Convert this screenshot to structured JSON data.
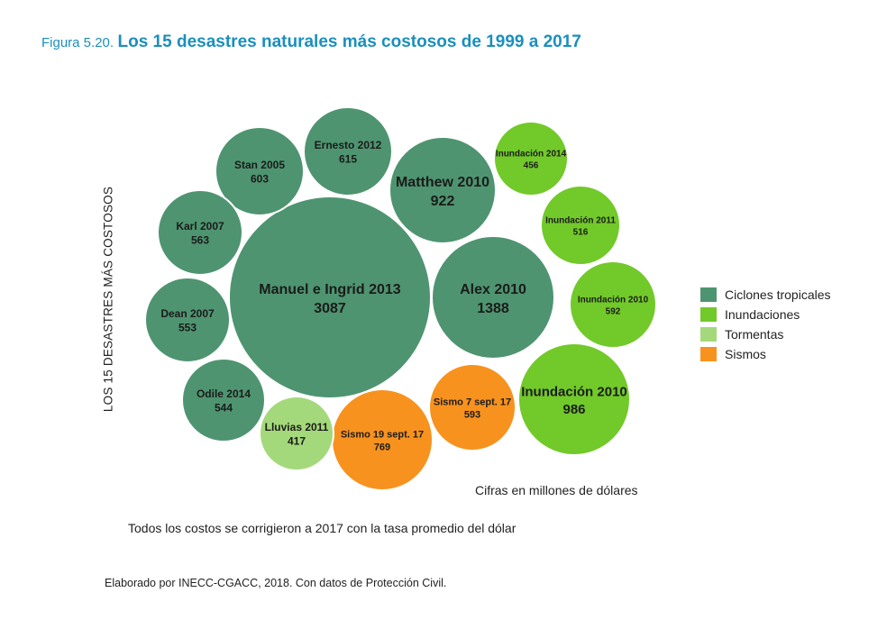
{
  "figure": {
    "prefix": "Figura 5.20.",
    "title": "Los 15 desastres naturales más costosos de 1999 a 2017"
  },
  "chart_data": {
    "type": "bubble",
    "ylabel": "LOS 15 DESASTRES MÁS COSTOSOS",
    "units_note": "Cifras en millones de dólares",
    "note": "Todos los costos se corrigieron a 2017 con la tasa promedio del dólar",
    "source": "Elaborado por INECC-CGACC, 2018. Con datos de Protección Civil.",
    "categories": [
      {
        "name": "Ciclones tropicales",
        "color": "#4e9470"
      },
      {
        "name": "Inundaciones",
        "color": "#72c92a"
      },
      {
        "name": "Tormentas",
        "color": "#a3d97a"
      },
      {
        "name": "Sismos",
        "color": "#f7921e"
      }
    ],
    "bubbles": [
      {
        "label": "Manuel e Ingrid 2013",
        "value": 3087,
        "category": "Ciclones tropicales"
      },
      {
        "label": "Alex 2010",
        "value": 1388,
        "category": "Ciclones tropicales"
      },
      {
        "label": "Inundación 2010",
        "value": 986,
        "category": "Inundaciones"
      },
      {
        "label": "Matthew 2010",
        "value": 922,
        "category": "Ciclones tropicales"
      },
      {
        "label": "Sismo 19 sept. 17",
        "value": 769,
        "category": "Sismos"
      },
      {
        "label": "Ernesto 2012",
        "value": 615,
        "category": "Ciclones tropicales"
      },
      {
        "label": "Stan 2005",
        "value": 603,
        "category": "Ciclones tropicales"
      },
      {
        "label": "Sismo 7 sept. 17",
        "value": 593,
        "category": "Sismos"
      },
      {
        "label": "Inundación 2010",
        "value": 592,
        "category": "Inundaciones"
      },
      {
        "label": "Karl 2007",
        "value": 563,
        "category": "Ciclones tropicales"
      },
      {
        "label": "Dean 2007",
        "value": 553,
        "category": "Ciclones tropicales"
      },
      {
        "label": "Odile 2014",
        "value": 544,
        "category": "Ciclones tropicales"
      },
      {
        "label": "Inundación 2011",
        "value": 516,
        "category": "Inundaciones"
      },
      {
        "label": "Inundación 2014",
        "value": 456,
        "category": "Inundaciones"
      },
      {
        "label": "Lluvias 2011",
        "value": 417,
        "category": "Tormentas"
      }
    ]
  }
}
